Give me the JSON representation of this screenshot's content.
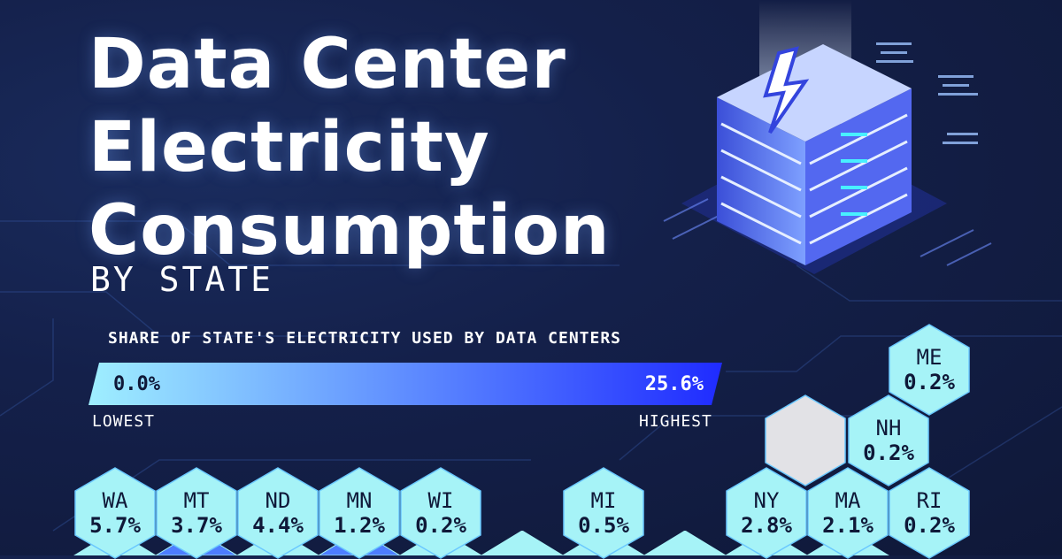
{
  "header": {
    "title_line1": "Data Center",
    "title_line2": "Electricity",
    "title_line3": "Consumption",
    "subtitle": "BY STATE"
  },
  "legend": {
    "title": "SHARE OF STATE'S ELECTRICITY USED BY DATA CENTERS",
    "min_value": "0.0%",
    "max_value": "25.6%",
    "low_label": "LOWEST",
    "high_label": "HIGHEST",
    "gradient_start": "#9fefff",
    "gradient_end": "#1f2bff"
  },
  "colors": {
    "background": "#14204a",
    "hex_light": "#a6f3f7",
    "hex_mid": "#4d7dff",
    "hex_gray": "#e2e2e6",
    "glow": "#6ac8ff"
  },
  "states": [
    {
      "abbr": "WA",
      "value": "5.7%"
    },
    {
      "abbr": "MT",
      "value": "3.7%"
    },
    {
      "abbr": "ND",
      "value": "4.4%"
    },
    {
      "abbr": "MN",
      "value": "1.2%"
    },
    {
      "abbr": "WI",
      "value": "0.2%"
    },
    {
      "abbr": "MI",
      "value": "0.5%"
    },
    {
      "abbr": "NY",
      "value": "2.8%"
    },
    {
      "abbr": "MA",
      "value": "2.1%"
    },
    {
      "abbr": "RI",
      "value": "0.2%"
    },
    {
      "abbr": "NH",
      "value": "0.2%"
    },
    {
      "abbr": "ME",
      "value": "0.2%"
    }
  ]
}
